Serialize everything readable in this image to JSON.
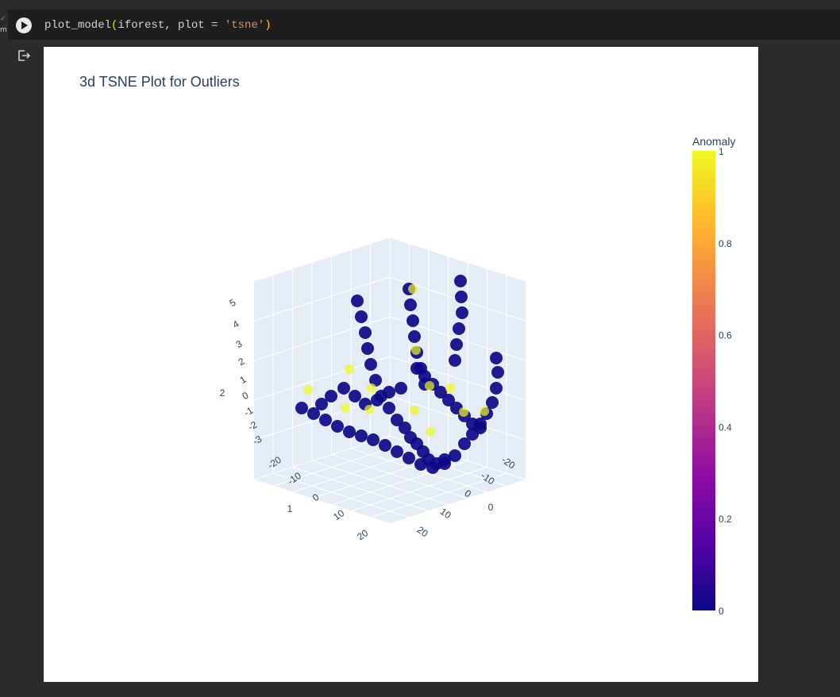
{
  "cell": {
    "status_check": "✓",
    "duration_fragment": "m",
    "code_function": "plot_model",
    "code_open_paren": "(",
    "code_args": "iforest, plot = ",
    "code_string": "'tsne'",
    "code_close_paren": ")"
  },
  "icons": {
    "run": "play-icon",
    "output": "output-redirect-icon"
  },
  "chart_data": {
    "type": "scatter",
    "title": "3d TSNE Plot for Outliers",
    "axes": {
      "x": {
        "title": "0",
        "ticks": [
          "-20",
          "-10",
          "0",
          "10",
          "20"
        ]
      },
      "y": {
        "title": "1",
        "ticks": [
          "-20",
          "-10",
          "0",
          "10",
          "20"
        ]
      },
      "z": {
        "title": "2",
        "ticks": [
          "-3",
          "-2",
          "-1",
          "0",
          "1",
          "2",
          "3",
          "4",
          "5"
        ]
      }
    },
    "colorbar": {
      "title": "Anomaly",
      "ticks": [
        "0",
        "0.2",
        "0.4",
        "0.6",
        "0.8",
        "1"
      ],
      "range": [
        0,
        1
      ],
      "colorscale": [
        "#0d0887",
        "#5302a3",
        "#8b0aa5",
        "#b83289",
        "#db5c68",
        "#f48849",
        "#febd2a",
        "#f0f921"
      ]
    },
    "series": [
      {
        "name": "",
        "anomaly": 0,
        "color": "#0d0887"
      },
      {
        "name": "",
        "anomaly": 1,
        "color": "#f0f921"
      }
    ],
    "grid": true,
    "background_color": "#e5ecf6"
  }
}
